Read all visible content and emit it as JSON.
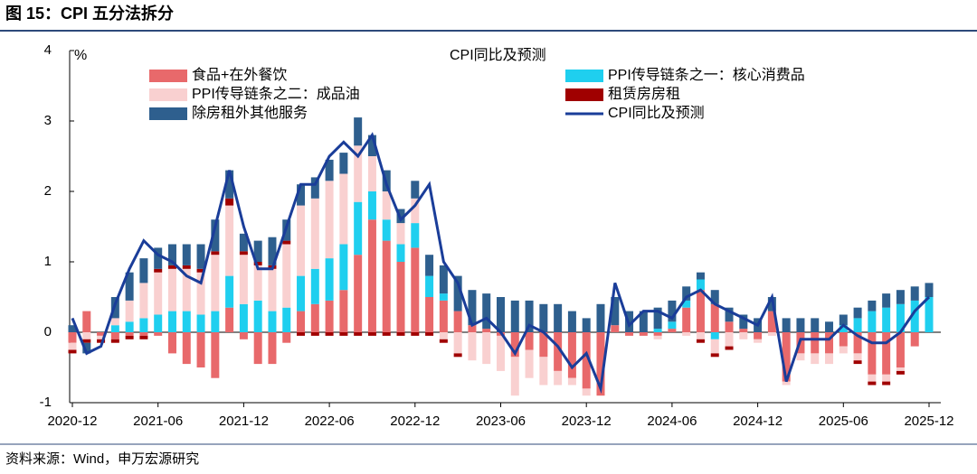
{
  "chart_data": {
    "type": "bar",
    "header": "图 15：CPI 五分法拆分",
    "title": "CPI同比及预测",
    "ylabel": "%",
    "source": "资料来源：Wind，申万宏源研究",
    "categories": [
      "2020-12",
      null,
      null,
      null,
      null,
      null,
      "2021-06",
      null,
      null,
      null,
      null,
      null,
      "2021-12",
      null,
      null,
      null,
      null,
      null,
      "2022-06",
      null,
      null,
      null,
      null,
      null,
      "2022-12",
      null,
      null,
      null,
      null,
      null,
      "2023-06",
      null,
      null,
      null,
      null,
      null,
      "2023-12",
      null,
      null,
      null,
      null,
      null,
      "2024-06",
      null,
      null,
      null,
      null,
      null,
      "2024-12",
      null,
      null,
      null,
      null,
      null,
      "2025-06",
      null,
      null,
      null,
      null,
      null,
      "2025-12"
    ],
    "ylim": [
      -1,
      4
    ],
    "yticks": [
      -1,
      0,
      1,
      2,
      3,
      4
    ],
    "series": [
      {
        "name": "食品+在外餐饮",
        "type": "bar",
        "color": "#e8696b",
        "values": [
          -0.15,
          0.3,
          -0.05,
          -0.1,
          -0.05,
          -0.05,
          -0.05,
          -0.3,
          -0.45,
          -0.5,
          -0.65,
          0.35,
          -0.1,
          -0.45,
          -0.45,
          -0.15,
          0.3,
          0.4,
          0.45,
          0.6,
          1.1,
          1.6,
          1.3,
          1.0,
          1.2,
          0.5,
          0.45,
          0.3,
          0.1,
          0.05,
          -0.05,
          -0.35,
          -0.25,
          -0.35,
          -0.55,
          -0.65,
          -0.8,
          -0.9,
          0.1,
          -0.05,
          -0.05,
          -0.05,
          0.05,
          0.35,
          0.6,
          0.4,
          0.15,
          0.05,
          -0.1,
          0.3,
          -0.7,
          -0.3,
          -0.3,
          -0.3,
          -0.2,
          -0.3,
          -0.6,
          -0.6,
          -0.5,
          -0.2,
          0.0
        ]
      },
      {
        "name": "PPI传导链条之二：成品油",
        "type": "bar",
        "color": "#f9d0d0",
        "values": [
          -0.1,
          -0.1,
          -0.05,
          0.1,
          0.3,
          0.5,
          0.6,
          0.6,
          0.6,
          0.6,
          0.8,
          1.0,
          0.7,
          0.5,
          0.6,
          0.9,
          1.0,
          1.0,
          1.1,
          1.0,
          0.8,
          0.5,
          0.4,
          0.3,
          0.35,
          0.0,
          -0.1,
          -0.3,
          -0.4,
          -0.45,
          -0.5,
          -0.55,
          -0.4,
          -0.4,
          -0.2,
          -0.1,
          -0.1,
          0,
          0,
          0,
          0,
          -0.05,
          0,
          -0.05,
          -0.1,
          -0.2,
          -0.2,
          -0.1,
          -0.05,
          -0.05,
          -0.05,
          -0.1,
          -0.15,
          -0.15,
          -0.1,
          -0.1,
          -0.1,
          -0.1,
          -0.05,
          0.0,
          0.0
        ]
      },
      {
        "name": "除房租外其他服务",
        "type": "bar",
        "color": "#2e5f8e",
        "values": [
          0.1,
          -0.15,
          0,
          0.3,
          0.4,
          0.35,
          0.3,
          0.3,
          0.3,
          0.35,
          0.45,
          0.4,
          0.25,
          0.3,
          0.4,
          0.3,
          0.3,
          0.3,
          0.3,
          0.3,
          0.4,
          0.3,
          0.3,
          0.2,
          0.25,
          0.3,
          0.4,
          0.5,
          0.5,
          0.5,
          0.5,
          0.45,
          0.45,
          0.4,
          0.4,
          0.3,
          0.2,
          0.4,
          0.4,
          0.3,
          0.3,
          0.3,
          0.3,
          0.2,
          0.1,
          0.2,
          0.2,
          0.2,
          0.2,
          0.2,
          0.2,
          0.2,
          0.2,
          0.15,
          0.15,
          0.15,
          0.15,
          0.2,
          0.2,
          0.2,
          0.2
        ]
      },
      {
        "name": "PPI传导链条之一：核心消费品",
        "type": "bar",
        "color": "#1fcfef",
        "values": [
          0.0,
          0.0,
          0.0,
          0.1,
          0.15,
          0.2,
          0.25,
          0.3,
          0.3,
          0.25,
          0.3,
          0.45,
          0.4,
          0.45,
          0.3,
          0.35,
          0.5,
          0.5,
          0.6,
          0.65,
          0.75,
          0.4,
          0.3,
          0.25,
          0.35,
          0.3,
          0.1,
          0,
          0,
          0,
          0,
          0,
          0,
          0,
          0,
          0,
          0,
          0,
          0,
          0,
          0,
          0.05,
          0.1,
          0.1,
          0.15,
          -0.1,
          0,
          0,
          0,
          0,
          0,
          0,
          0,
          0,
          0.1,
          0.2,
          0.3,
          0.35,
          0.4,
          0.45,
          0.5
        ]
      },
      {
        "name": "租赁房房租",
        "type": "bar",
        "color": "#a00000",
        "values": [
          -0.05,
          -0.05,
          -0.05,
          -0.05,
          -0.05,
          -0.05,
          0.05,
          0.05,
          0.05,
          0.05,
          0.05,
          0.1,
          0.05,
          0.05,
          0.05,
          0.05,
          -0.05,
          -0.05,
          -0.05,
          -0.05,
          -0.05,
          -0.05,
          -0.05,
          -0.05,
          -0.05,
          -0.05,
          -0.05,
          -0.05,
          0,
          0,
          0,
          0,
          0,
          0,
          0,
          0,
          0,
          0,
          0,
          0,
          0,
          0,
          0,
          0,
          -0.05,
          -0.05,
          -0.05,
          0,
          0,
          0,
          0,
          0,
          0,
          0,
          0,
          -0.05,
          -0.05,
          -0.05,
          -0.05,
          0,
          0
        ]
      },
      {
        "name": "CPI同比及预测",
        "type": "line",
        "color": "#1a3d99",
        "values": [
          0.2,
          -0.3,
          -0.2,
          0.4,
          0.9,
          1.3,
          1.1,
          1.0,
          0.8,
          0.7,
          1.5,
          2.3,
          1.5,
          0.9,
          0.9,
          1.5,
          2.1,
          2.1,
          2.5,
          2.7,
          2.5,
          2.8,
          2.1,
          1.6,
          1.8,
          2.1,
          1.0,
          0.7,
          0.1,
          0.2,
          0.0,
          -0.3,
          0.1,
          0.0,
          -0.2,
          -0.5,
          -0.3,
          -0.8,
          0.7,
          0.1,
          0.3,
          0.3,
          0.2,
          0.5,
          0.6,
          0.4,
          0.3,
          0.2,
          0.1,
          0.5,
          -0.7,
          -0.1,
          -0.1,
          -0.1,
          0.1,
          -0.05,
          -0.15,
          -0.15,
          0.0,
          0.3,
          0.5
        ]
      }
    ]
  }
}
